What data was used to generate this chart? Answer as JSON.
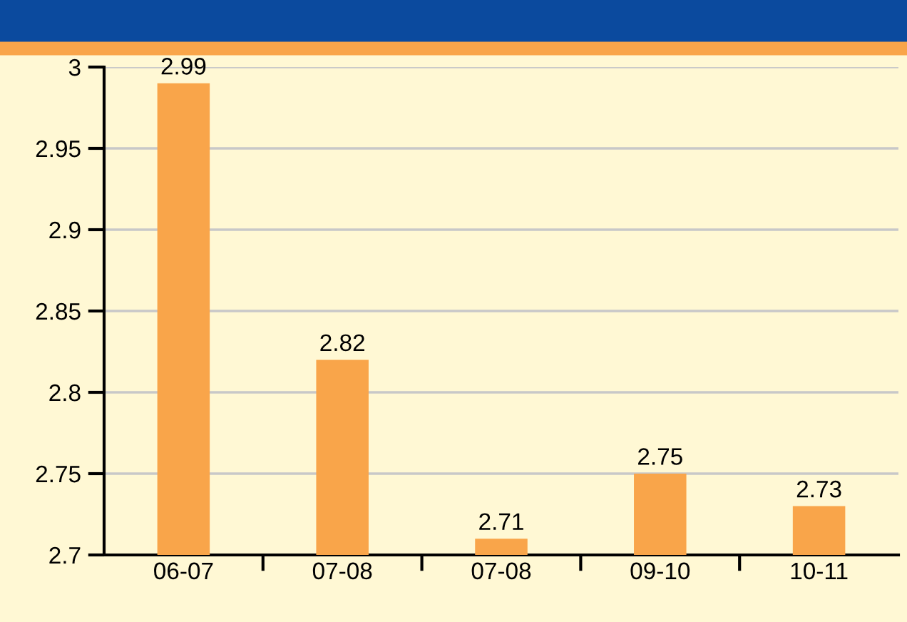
{
  "chart_data": {
    "type": "bar",
    "categories": [
      "06-07",
      "07-08",
      "07-08",
      "09-10",
      "10-11"
    ],
    "values": [
      2.99,
      2.82,
      2.71,
      2.75,
      2.73
    ],
    "color": "#f9a54a",
    "ylim": [
      2.7,
      3.0
    ],
    "yticks": [
      2.7,
      2.75,
      2.8,
      2.85,
      2.9,
      2.95,
      3
    ],
    "grid": "y",
    "data_labels": true
  }
}
